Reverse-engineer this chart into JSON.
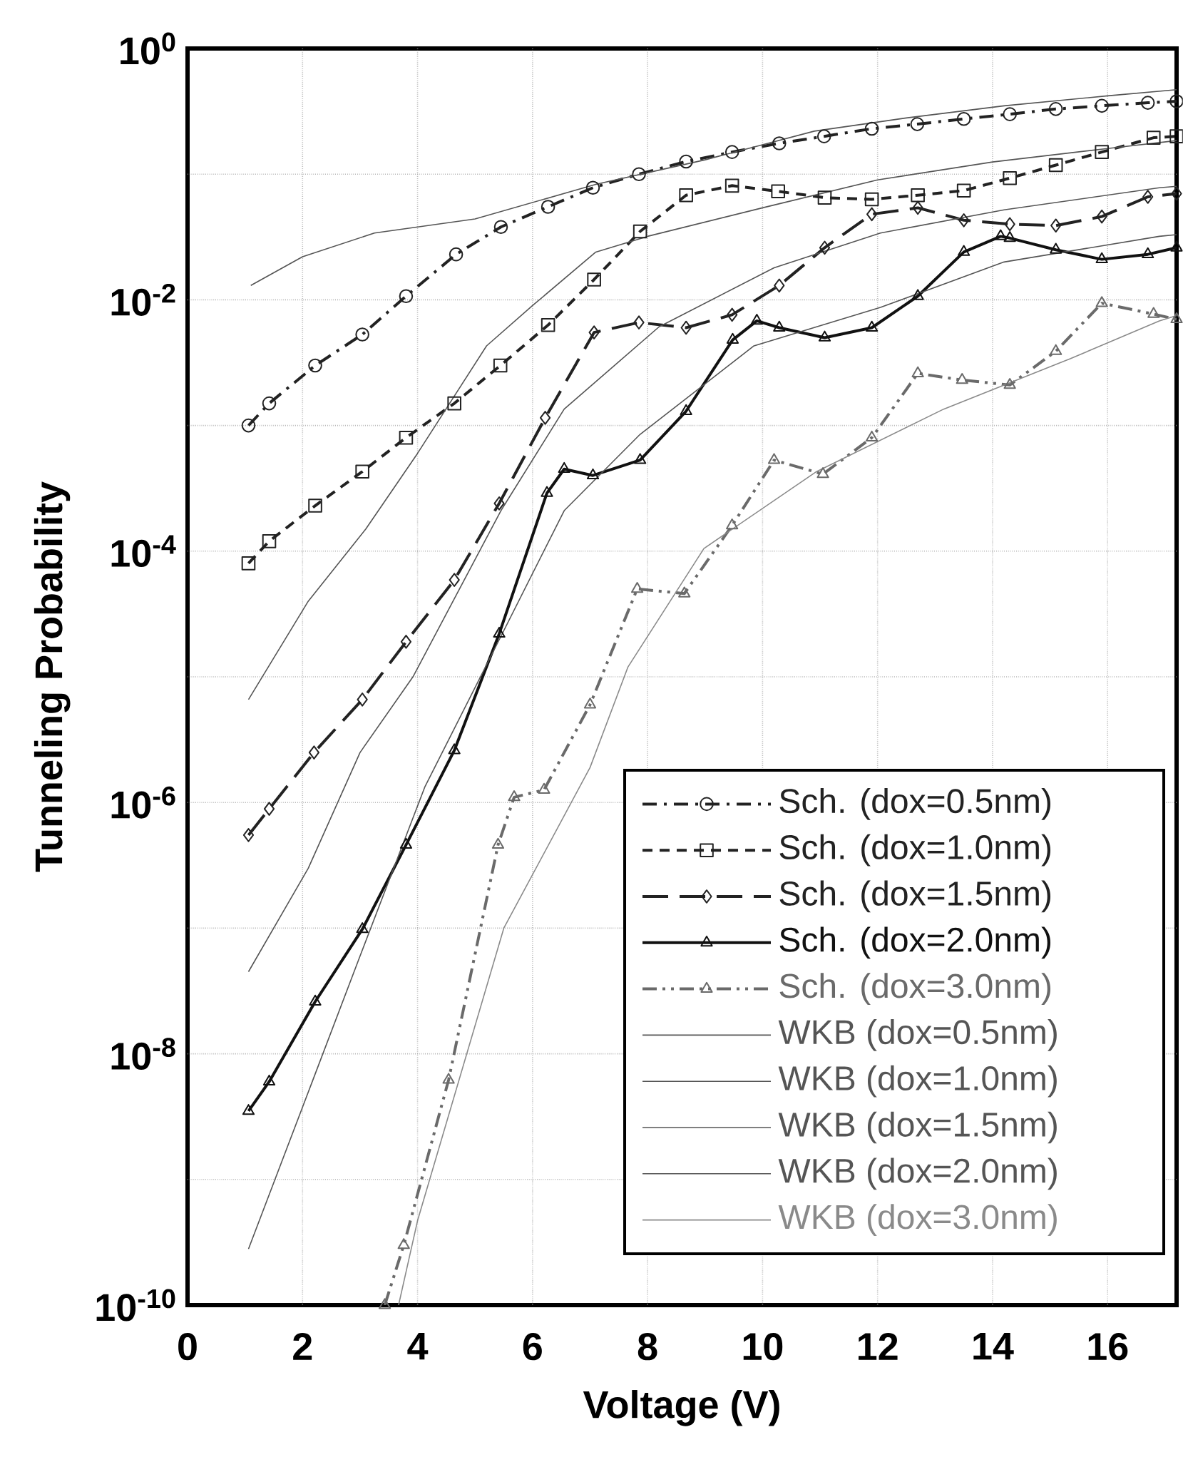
{
  "chart_data": {
    "type": "line",
    "xlabel": "Voltage (V)",
    "ylabel": "Tunneling Probability",
    "xlim": [
      0,
      17.2
    ],
    "xticks": [
      0,
      2,
      4,
      6,
      8,
      10,
      12,
      14,
      16
    ],
    "ylim": [
      1e-10,
      1
    ],
    "log": "y",
    "yticks": [
      {
        "value": 1e-10,
        "label": "10$^{-10}$"
      },
      {
        "value": 1e-09,
        "label": null
      },
      {
        "value": 1e-08,
        "label": "10$^{-8}$"
      },
      {
        "value": 1e-07,
        "label": null
      },
      {
        "value": 1e-06,
        "label": "10$^{-6}$"
      },
      {
        "value": 1e-05,
        "label": null
      },
      {
        "value": 0.0001,
        "label": "10$^{-4}$"
      },
      {
        "value": 0.001,
        "label": null
      },
      {
        "value": 0.01,
        "label": "10$^{-2}$"
      },
      {
        "value": 0.1,
        "label": null
      },
      {
        "value": 1,
        "label": "10$^{0}$"
      }
    ],
    "grid": true,
    "legend": "bottom right",
    "series": [
      {
        "name": "Sch. (dox=0.5nm)",
        "color": "#222222",
        "marker": "circle",
        "line_style": "dashdot",
        "x": [
          1.06,
          1.42,
          2.22,
          3.04,
          3.8,
          4.67,
          5.45,
          6.27,
          7.05,
          7.85,
          8.67,
          9.47,
          10.29,
          11.07,
          11.9,
          12.69,
          13.5,
          14.3,
          15.1,
          15.9,
          16.7,
          17.2
        ],
        "values": [
          0.001,
          0.0015,
          0.003,
          0.0053,
          0.0107,
          0.023,
          0.038,
          0.055,
          0.078,
          0.1,
          0.126,
          0.15,
          0.176,
          0.2,
          0.23,
          0.25,
          0.275,
          0.3,
          0.33,
          0.35,
          0.37,
          0.38
        ]
      },
      {
        "name": "Sch. (dox=1.0nm)",
        "color": "#222222",
        "marker": "square",
        "line_style": "dashed",
        "x": [
          1.06,
          1.42,
          2.22,
          3.04,
          3.8,
          4.64,
          5.44,
          6.27,
          7.07,
          7.87,
          8.67,
          9.47,
          10.27,
          11.08,
          11.9,
          12.7,
          13.5,
          14.3,
          15.1,
          15.9,
          16.8,
          17.2
        ],
        "values": [
          8e-05,
          0.00012,
          0.00023,
          0.00043,
          0.0008,
          0.0015,
          0.003,
          0.0063,
          0.0145,
          0.035,
          0.068,
          0.081,
          0.073,
          0.065,
          0.063,
          0.068,
          0.074,
          0.093,
          0.118,
          0.15,
          0.195,
          0.2
        ]
      },
      {
        "name": "Sch. (dox=1.5nm)",
        "color": "#222222",
        "marker": "diamond",
        "line_style": "longdash",
        "x": [
          1.06,
          1.42,
          2.2,
          3.04,
          3.8,
          4.64,
          5.42,
          6.22,
          7.07,
          7.85,
          8.67,
          9.47,
          10.29,
          11.08,
          11.9,
          12.7,
          13.5,
          14.3,
          15.1,
          15.9,
          16.7,
          17.2
        ],
        "values": [
          5.5e-07,
          8.9e-07,
          2.5e-06,
          6.6e-06,
          1.9e-05,
          5.9e-05,
          0.00024,
          0.00115,
          0.0055,
          0.0066,
          0.006,
          0.0076,
          0.013,
          0.026,
          0.048,
          0.054,
          0.043,
          0.04,
          0.039,
          0.046,
          0.066,
          0.07
        ]
      },
      {
        "name": "Sch. (dox=2.0nm)",
        "color": "#111111",
        "marker": "triangle",
        "line_style": "solid",
        "x": [
          1.06,
          1.42,
          2.22,
          3.04,
          3.8,
          4.64,
          5.42,
          6.25,
          6.55,
          7.05,
          7.87,
          8.67,
          9.48,
          9.9,
          10.29,
          11.08,
          11.9,
          12.7,
          13.5,
          14.14,
          14.3,
          15.1,
          15.9,
          16.7,
          17.2
        ],
        "values": [
          3.5e-09,
          6e-09,
          2.6e-08,
          9.8e-08,
          4.6e-07,
          2.6e-06,
          2.2e-05,
          0.00029,
          0.00045,
          0.0004,
          0.00053,
          0.0013,
          0.0048,
          0.0068,
          0.006,
          0.005,
          0.006,
          0.0107,
          0.024,
          0.032,
          0.031,
          0.025,
          0.021,
          0.023,
          0.026
        ]
      },
      {
        "name": "Sch. (dox=3.0nm)",
        "color": "#6a6a6a",
        "marker": "triangle_down",
        "line_style": "dashdotdot",
        "x": [
          3.43,
          3.76,
          4.54,
          5.4,
          5.68,
          6.2,
          7.0,
          7.82,
          8.64,
          9.47,
          10.2,
          11.05,
          11.9,
          12.7,
          13.47,
          14.3,
          15.1,
          15.9,
          16.8,
          17.2
        ],
        "values": [
          1e-10,
          3e-10,
          6.2e-09,
          4.6e-07,
          1.1e-06,
          1.26e-06,
          6e-06,
          5e-05,
          4.6e-05,
          0.00016,
          0.00053,
          0.00041,
          0.0008,
          0.0026,
          0.0023,
          0.0021,
          0.0039,
          0.0094,
          0.0077,
          0.007
        ]
      },
      {
        "name": "WKB (dox=0.5nm)",
        "color": "#555555",
        "marker": "none",
        "line_style": "solid",
        "x": [
          1.1,
          2,
          3.25,
          5,
          7.1,
          9,
          10.9,
          12.5,
          14.2,
          16,
          17.2
        ],
        "values": [
          0.013,
          0.022,
          0.034,
          0.044,
          0.083,
          0.13,
          0.22,
          0.28,
          0.35,
          0.42,
          0.47
        ]
      },
      {
        "name": "WKB (dox=1.0nm)",
        "color": "#555555",
        "marker": "none",
        "line_style": "solid",
        "x": [
          1.06,
          2.1,
          3.1,
          4,
          5.2,
          6,
          7.1,
          8,
          10,
          12,
          14,
          16,
          17.2
        ],
        "values": [
          6.6e-06,
          4e-05,
          0.00015,
          0.0006,
          0.0043,
          0.009,
          0.024,
          0.032,
          0.054,
          0.09,
          0.125,
          0.16,
          0.185
        ]
      },
      {
        "name": "WKB (dox=1.5nm)",
        "color": "#555555",
        "marker": "none",
        "line_style": "solid",
        "x": [
          1.06,
          2.1,
          3,
          3.92,
          5.45,
          6.55,
          8.2,
          10.2,
          12.05,
          14.2,
          16.9,
          17.2
        ],
        "values": [
          4.5e-08,
          3e-07,
          2.5e-06,
          1e-05,
          0.00021,
          0.00135,
          0.0061,
          0.018,
          0.034,
          0.052,
          0.078,
          0.08
        ]
      },
      {
        "name": "WKB (dox=2.0nm)",
        "color": "#555555",
        "marker": "none",
        "line_style": "solid",
        "x": [
          1.06,
          2.15,
          3,
          4.13,
          5.45,
          6.55,
          7.87,
          9.85,
          12.05,
          14.2,
          16.9,
          17.2
        ],
        "values": [
          2.8e-10,
          5.7e-09,
          6e-08,
          1.34e-06,
          2.1e-05,
          0.00021,
          0.00085,
          0.0043,
          0.0087,
          0.02,
          0.032,
          0.033
        ]
      },
      {
        "name": "WKB (dox=3.0nm)",
        "color": "#8a8a8a",
        "marker": "none",
        "line_style": "solid",
        "x": [
          3.67,
          4,
          5.5,
          7.0,
          7.66,
          8.98,
          10.94,
          13.15,
          15.35,
          16.9,
          17.2
        ],
        "values": [
          1e-10,
          4.7e-10,
          1e-07,
          1.9e-06,
          1.2e-05,
          0.000105,
          0.00043,
          0.00135,
          0.0034,
          0.0068,
          0.0075
        ]
      }
    ]
  }
}
